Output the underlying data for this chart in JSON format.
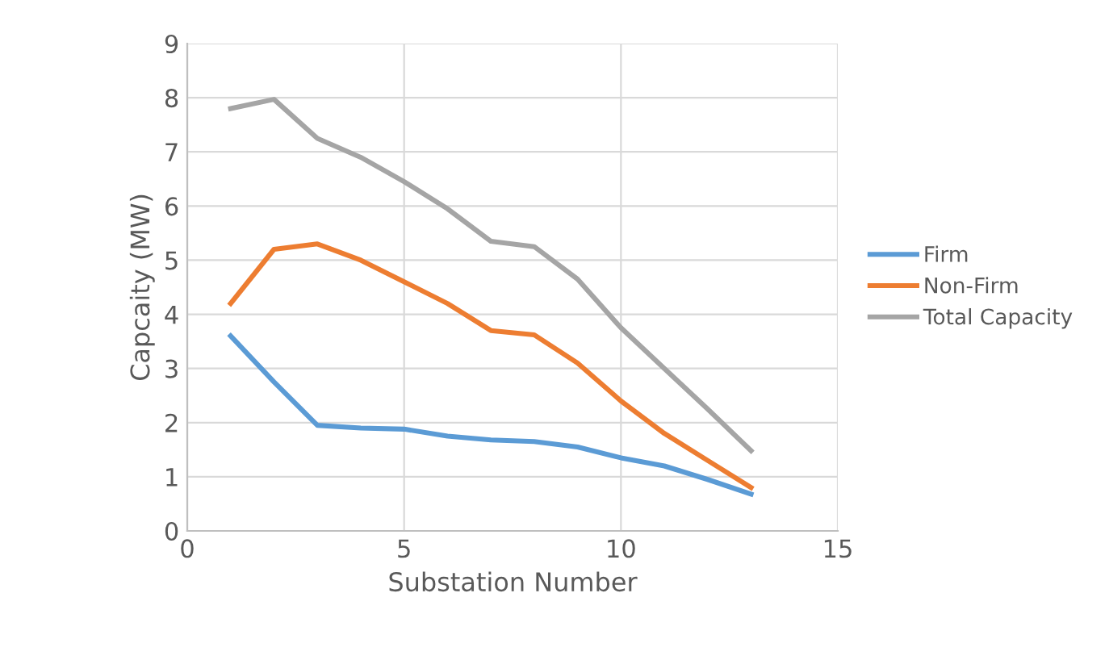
{
  "chart_data": {
    "type": "line",
    "xlabel": "Substation Number",
    "ylabel": "Capcaity (MW)",
    "x": [
      1,
      2,
      3,
      4,
      5,
      6,
      7,
      8,
      9,
      10,
      11,
      12,
      13
    ],
    "series": [
      {
        "name": "Firm",
        "color": "#5b9bd5",
        "values": [
          3.6,
          2.75,
          1.95,
          1.9,
          1.88,
          1.75,
          1.68,
          1.65,
          1.55,
          1.35,
          1.2,
          0.95,
          0.68
        ]
      },
      {
        "name": "Non-Firm",
        "color": "#ed7d31",
        "values": [
          4.2,
          5.2,
          5.3,
          5.0,
          4.6,
          4.2,
          3.7,
          3.62,
          3.1,
          2.4,
          1.8,
          1.3,
          0.8
        ]
      },
      {
        "name": "Total Capacity",
        "color": "#a5a5a5",
        "values": [
          7.8,
          7.97,
          7.25,
          6.9,
          6.45,
          5.95,
          5.35,
          5.25,
          4.65,
          3.75,
          3.0,
          2.25,
          1.48
        ]
      }
    ],
    "xlim": [
      0,
      15
    ],
    "xticks": [
      0,
      5,
      10,
      15
    ],
    "ylim": [
      0,
      9
    ],
    "yticks": [
      0,
      1,
      2,
      3,
      4,
      5,
      6,
      7,
      8,
      9
    ],
    "grid": true,
    "legend": "right",
    "marker": "none",
    "line_style": "solid"
  }
}
